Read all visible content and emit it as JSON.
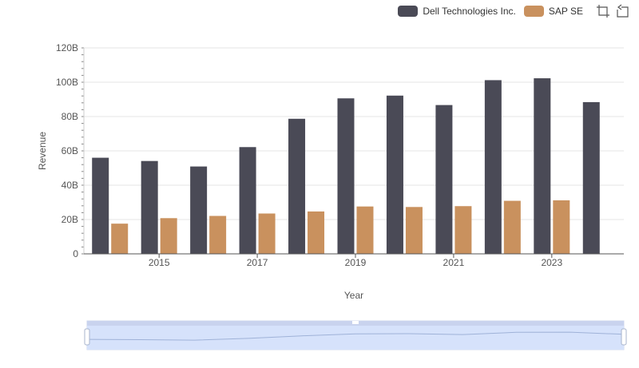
{
  "chart_data": {
    "type": "bar",
    "categories": [
      "2014",
      "2015",
      "2016",
      "2017",
      "2018",
      "2019",
      "2020",
      "2021",
      "2022",
      "2023",
      "2024"
    ],
    "x_tick_labels": [
      "2015",
      "2017",
      "2019",
      "2021",
      "2023"
    ],
    "y_tick_labels": [
      "0",
      "20B",
      "40B",
      "60B",
      "80B",
      "100B",
      "120B"
    ],
    "series": [
      {
        "name": "Dell Technologies Inc.",
        "color": "#4a4a56",
        "values": [
          56.0,
          54.1,
          50.9,
          62.2,
          78.7,
          90.6,
          92.2,
          86.7,
          101.2,
          102.3,
          88.4
        ]
      },
      {
        "name": "SAP SE",
        "color": "#c9915e",
        "values": [
          17.6,
          20.8,
          22.1,
          23.5,
          24.7,
          27.6,
          27.3,
          27.8,
          30.9,
          31.2,
          null
        ]
      }
    ],
    "xlabel": "Year",
    "ylabel": "Revenue",
    "ylim": [
      0,
      120
    ],
    "grid": true,
    "legend_position": "top-right"
  },
  "toolbar": {
    "icons": [
      "zoom-select-icon",
      "zoom-reset-icon"
    ]
  }
}
